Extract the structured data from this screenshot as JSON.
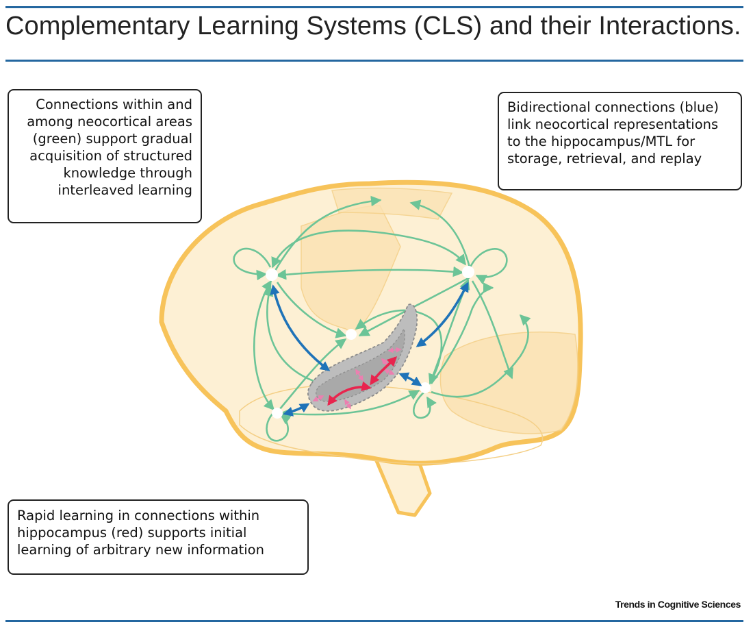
{
  "header": {
    "title": "Complementary Learning Systems (CLS) and their Interactions."
  },
  "callouts": {
    "neocortex": {
      "lines": [
        "Connections within and",
        "among neocortical areas",
        "(green) support gradual",
        "acquisition of structured",
        "knowledge through",
        "interleaved learning"
      ]
    },
    "bidirectional": {
      "lines": [
        "Bidirectional connections (blue)",
        "link neocortical representations",
        "to the hippocampus/MTL for",
        "storage, retrieval, and replay"
      ]
    },
    "hippocampus": {
      "lines": [
        "Rapid learning in connections within",
        "hippocampus (red) supports initial",
        "learning of arbitrary new information"
      ]
    }
  },
  "footer": {
    "source": "Trends in Cognitive Sciences"
  },
  "colors": {
    "accent_rule": "#2467a0",
    "brain_outline": "#f7c35a",
    "brain_fill": "#fdf0d4",
    "neocortical_connections": "#6cc497",
    "bidirectional_connections": "#1f73b8",
    "hippocampal_connections": "#e8254e",
    "hippocampus_fill": "#bdbdbd"
  }
}
